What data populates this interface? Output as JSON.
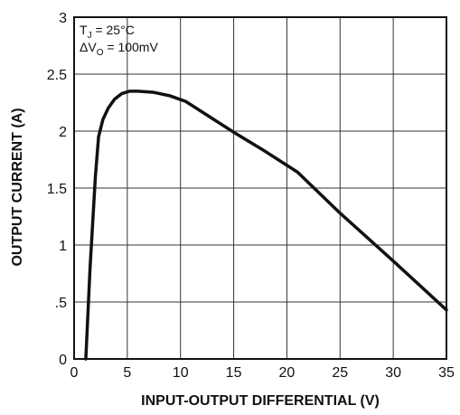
{
  "chart_data": {
    "type": "line",
    "title": "",
    "xlabel": "INPUT-OUTPUT DIFFERENTIAL (V)",
    "ylabel": "OUTPUT CURRENT (A)",
    "xlim": [
      0,
      35
    ],
    "ylim": [
      0,
      3
    ],
    "x_ticks": [
      0,
      5,
      10,
      15,
      20,
      25,
      30,
      35
    ],
    "x_tick_labels": [
      "0",
      "5",
      "10",
      "15",
      "20",
      "25",
      "30",
      "35"
    ],
    "y_ticks": [
      0,
      0.5,
      1,
      1.5,
      2,
      2.5,
      3
    ],
    "y_tick_labels": [
      "0",
      ".5",
      "1",
      "1.5",
      "2",
      "2.5",
      "3"
    ],
    "grid": true,
    "annotation": {
      "line1_main": "T",
      "line1_sub": "J",
      "line1_rest": " = 25°C",
      "line2_main": "ΔV",
      "line2_sub": "O",
      "line2_rest": " = 100mV"
    },
    "series": [
      {
        "x": [
          1.1,
          1.5,
          2.0,
          2.3,
          2.7,
          3.2,
          3.8,
          4.5,
          5.2,
          6.0,
          7.5,
          9.0,
          10.5,
          12.5,
          15.0,
          18.0,
          21.0,
          25.0,
          30.0,
          35.0
        ],
        "y": [
          0.0,
          0.8,
          1.6,
          1.95,
          2.1,
          2.2,
          2.28,
          2.33,
          2.35,
          2.35,
          2.34,
          2.31,
          2.26,
          2.14,
          1.99,
          1.82,
          1.64,
          1.28,
          0.86,
          0.43
        ]
      }
    ]
  }
}
